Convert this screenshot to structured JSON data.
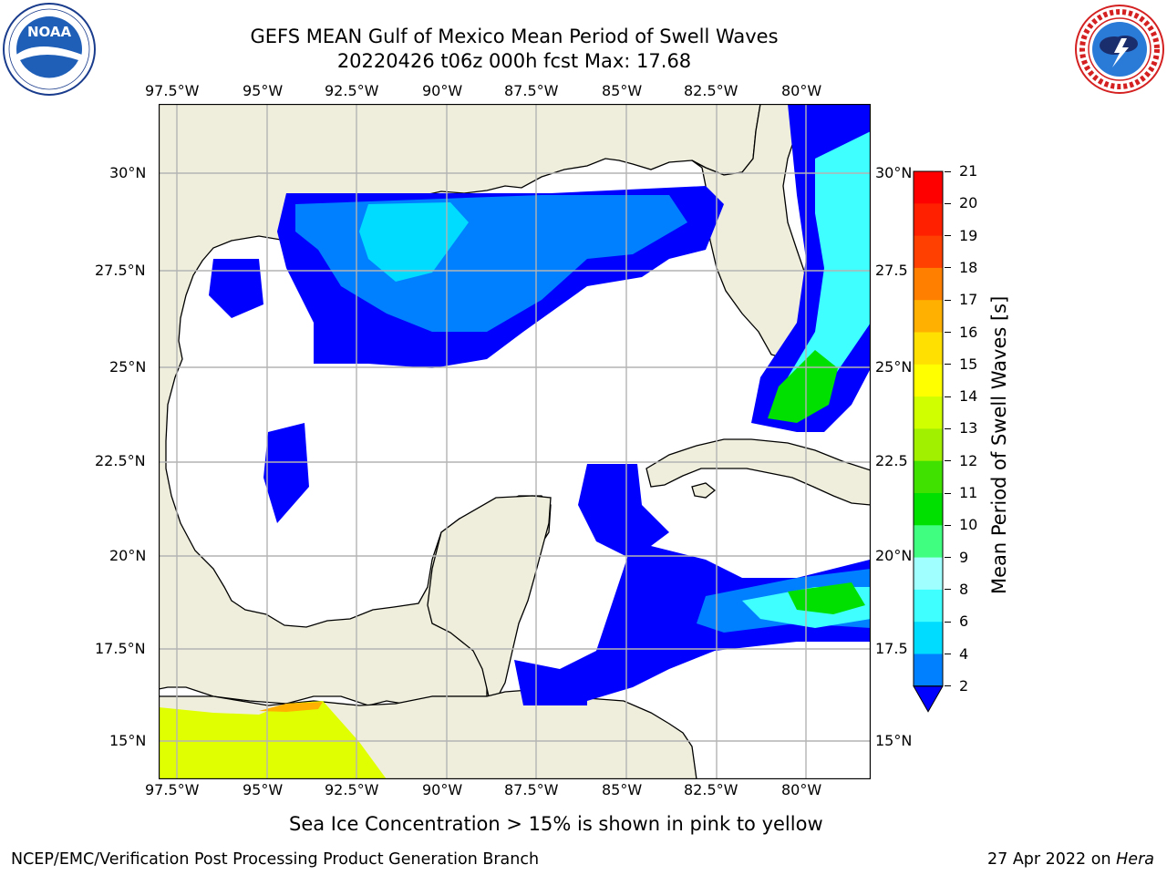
{
  "header": {
    "title_line1": "GEFS MEAN Gulf of Mexico Mean Period of Swell Waves",
    "title_line2": "20220426 t06z 000h fcst   Max: 17.68"
  },
  "logos": {
    "left": {
      "name": "noaa-logo",
      "text": "NOAA",
      "ring_text": "NATIONAL OCEANIC AND ATMOSPHERIC ADMINISTRATION · U.S. DEPARTMENT OF COMMERCE"
    },
    "right": {
      "name": "nws-logo",
      "ring_text": "NATIONAL WEATHER SERVICE"
    }
  },
  "map": {
    "lon_ticks": [
      "97.5°W",
      "95°W",
      "92.5°W",
      "90°W",
      "87.5°W",
      "85°W",
      "82.5°W",
      "80°W"
    ],
    "lat_ticks": [
      "30°N",
      "27.5°N",
      "25°N",
      "22.5°N",
      "20°N",
      "17.5°N",
      "15°N"
    ],
    "lat_ticks_right": [
      "30°N",
      "27.5",
      "25°N",
      "22.5",
      "20°N",
      "17.5",
      "15°N"
    ],
    "colors": {
      "land": "#efeedc",
      "ocean": "#ffffff",
      "grid": "#b4b4b4",
      "coast": "#000000"
    }
  },
  "colorbar": {
    "label": "Mean Period of Swell Waves [s]",
    "ticks": [
      "2",
      "4",
      "6",
      "8",
      "9",
      "10",
      "11",
      "12",
      "13",
      "14",
      "15",
      "16",
      "17",
      "18",
      "19",
      "20",
      "21"
    ],
    "levels": [
      2,
      4,
      6,
      8,
      9,
      10,
      11,
      12,
      13,
      14,
      15,
      16,
      17,
      18,
      19,
      20,
      21
    ],
    "colors": [
      "#0000ff",
      "#0080ff",
      "#00dcff",
      "#40ffff",
      "#a0ffff",
      "#40ff80",
      "#00e000",
      "#40e000",
      "#a0f000",
      "#d0ff00",
      "#ffff00",
      "#ffe000",
      "#ffb000",
      "#ff8000",
      "#ff4000",
      "#ff2000",
      "#ff0000"
    ],
    "under_color": "#0000ff"
  },
  "caption": "Sea Ice Concentration > 15% is shown in pink to yellow",
  "footer": {
    "left": "NCEP/EMC/Verification Post Processing Product Generation Branch",
    "right_date": "27 Apr 2022 on",
    "right_host": "Hera"
  }
}
